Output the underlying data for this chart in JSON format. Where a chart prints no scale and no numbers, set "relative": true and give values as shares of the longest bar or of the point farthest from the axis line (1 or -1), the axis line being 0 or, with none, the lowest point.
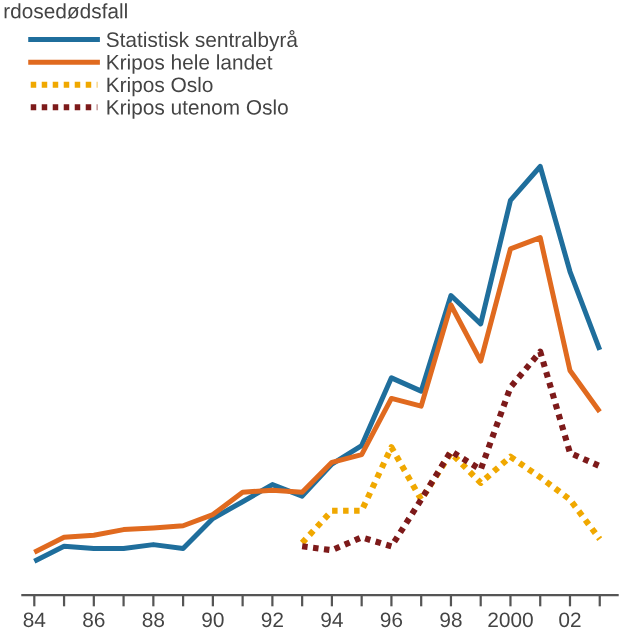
{
  "chart_data": {
    "type": "line",
    "title": "rdosedødsfall",
    "relative": true,
    "x": [
      1984,
      1985,
      1986,
      1987,
      1988,
      1989,
      1990,
      1991,
      1992,
      1993,
      1994,
      1995,
      1996,
      1997,
      1998,
      1999,
      2000,
      2001,
      2002,
      2003
    ],
    "xlim": [
      1983.6,
      2003.6
    ],
    "xticks": [
      {
        "value": 1984,
        "label": "84"
      },
      {
        "value": 1985,
        "label": null
      },
      {
        "value": 1986,
        "label": "86"
      },
      {
        "value": 1987,
        "label": null
      },
      {
        "value": 1988,
        "label": "88"
      },
      {
        "value": 1989,
        "label": null
      },
      {
        "value": 1990,
        "label": "90"
      },
      {
        "value": 1991,
        "label": null
      },
      {
        "value": 1992,
        "label": "92"
      },
      {
        "value": 1993,
        "label": null
      },
      {
        "value": 1994,
        "label": "94"
      },
      {
        "value": 1995,
        "label": null
      },
      {
        "value": 1996,
        "label": "96"
      },
      {
        "value": 1997,
        "label": null
      },
      {
        "value": 1998,
        "label": "98"
      },
      {
        "value": 1999,
        "label": null
      },
      {
        "value": 2000,
        "label": "2000"
      },
      {
        "value": 2001,
        "label": null
      },
      {
        "value": 2002,
        "label": "02"
      },
      {
        "value": 2003,
        "label": null
      }
    ],
    "tick_labels": "x",
    "grid": false,
    "legend": "top left",
    "marker": "none",
    "series": [
      {
        "name": "Statistisk sentralbyrå",
        "color": "#1f6e9c",
        "line_style": "solid",
        "values": [
          0.079,
          0.114,
          0.109,
          0.109,
          0.118,
          0.109,
          0.179,
          0.218,
          0.258,
          0.231,
          0.306,
          0.349,
          0.507,
          0.476,
          0.699,
          0.633,
          0.921,
          1,
          0.755,
          0.572
        ]
      },
      {
        "name": "Kripos hele landet",
        "color": "#e06a1f",
        "line_style": "solid",
        "values": [
          0.1,
          0.135,
          0.14,
          0.153,
          0.157,
          0.162,
          0.188,
          0.24,
          0.245,
          0.24,
          0.31,
          0.328,
          0.459,
          0.441,
          0.677,
          0.546,
          0.808,
          0.834,
          0.524,
          0.428
        ]
      },
      {
        "name": "Kripos Oslo",
        "color": "#f0a800",
        "line_style": "dotted",
        "values": [
          null,
          null,
          null,
          null,
          null,
          null,
          null,
          null,
          null,
          0.122,
          0.197,
          0.197,
          0.345,
          0.223,
          0.332,
          0.262,
          0.323,
          0.275,
          0.223,
          0.131
        ]
      },
      {
        "name": "Kripos utenom Oslo",
        "color": "#7d1a1a",
        "line_style": "dotted",
        "values": [
          null,
          null,
          null,
          null,
          null,
          null,
          null,
          null,
          null,
          0.114,
          0.105,
          0.135,
          0.114,
          0.223,
          0.336,
          0.293,
          0.485,
          0.568,
          0.332,
          0.301
        ]
      }
    ]
  }
}
